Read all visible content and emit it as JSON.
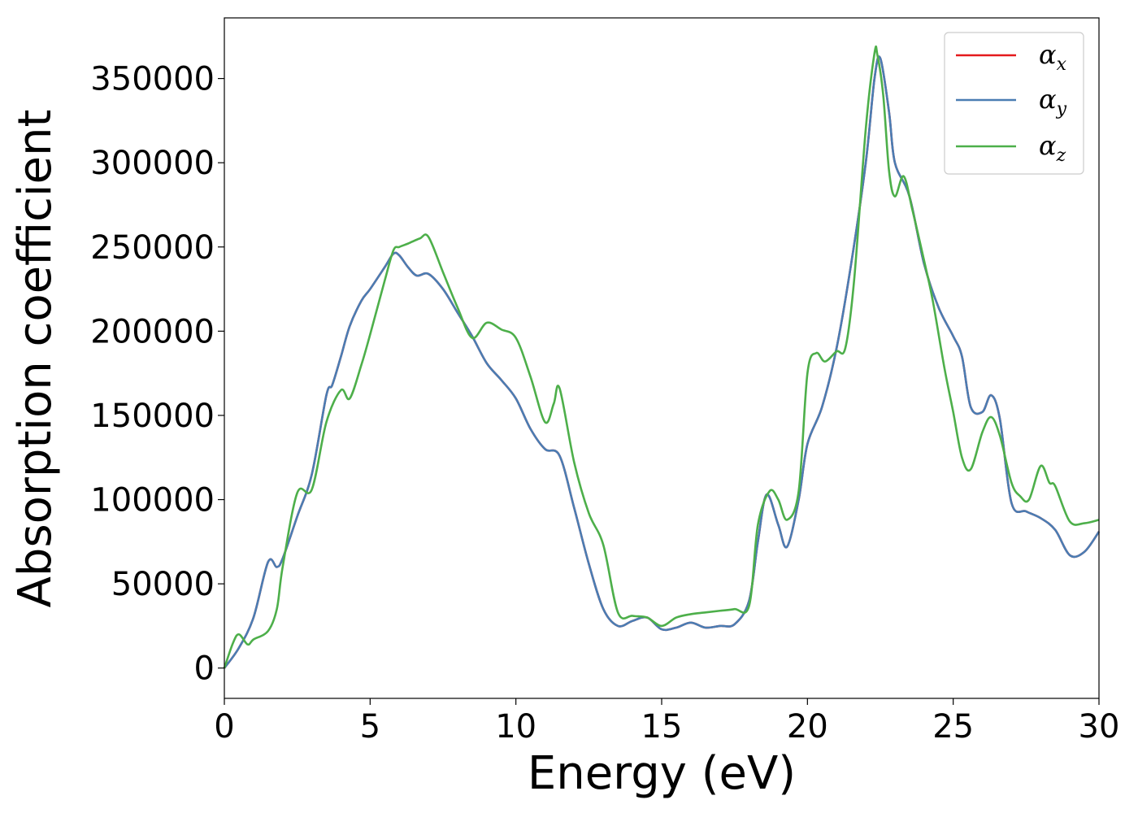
{
  "chart_data": {
    "type": "line",
    "xlabel": "Energy (eV)",
    "ylabel": "Absorption coefficient",
    "xlim": [
      0,
      30
    ],
    "ylim": [
      -18000,
      386000
    ],
    "xticks": [
      0,
      5,
      10,
      15,
      20,
      25,
      30
    ],
    "xtick_labels": [
      "0",
      "5",
      "10",
      "15",
      "20",
      "25",
      "30"
    ],
    "yticks": [
      0,
      50000,
      100000,
      150000,
      200000,
      250000,
      300000,
      350000
    ],
    "ytick_labels": [
      "0",
      "50000",
      "100000",
      "150000",
      "200000",
      "250000",
      "300000",
      "350000"
    ],
    "grid": false,
    "legend": {
      "position": "top-right",
      "entries": [
        {
          "symbol": "α",
          "sub": "x",
          "color": "#e41a1c"
        },
        {
          "symbol": "α",
          "sub": "y",
          "color": "#4a7db3"
        },
        {
          "symbol": "α",
          "sub": "z",
          "color": "#4daf4a"
        }
      ]
    },
    "series": [
      {
        "color": "#e41a1c",
        "x": [
          0,
          0.5,
          1.0,
          1.5,
          1.8,
          2.0,
          2.5,
          3.0,
          3.5,
          3.7,
          4.0,
          4.3,
          4.7,
          5.0,
          5.5,
          5.8,
          6.0,
          6.3,
          6.6,
          7.0,
          7.5,
          8.0,
          8.5,
          9.0,
          9.5,
          10.0,
          10.5,
          11.0,
          11.5,
          12.0,
          12.5,
          13.0,
          13.5,
          14.0,
          14.5,
          15.0,
          15.5,
          16.0,
          16.5,
          17.0,
          17.5,
          18.0,
          18.3,
          18.6,
          19.0,
          19.3,
          19.7,
          20.0,
          20.5,
          21.0,
          21.5,
          22.0,
          22.3,
          22.5,
          22.8,
          23.0,
          23.5,
          24.0,
          24.5,
          25.0,
          25.3,
          25.6,
          26.0,
          26.3,
          26.6,
          27.0,
          27.5,
          28.0,
          28.5,
          29.0,
          29.5,
          30.0
        ],
        "y": [
          0,
          12000,
          30000,
          63000,
          60000,
          65000,
          90000,
          115000,
          162000,
          168000,
          185000,
          203000,
          218000,
          225000,
          238000,
          246000,
          245000,
          238000,
          233000,
          234000,
          225000,
          211000,
          197000,
          181000,
          171000,
          160000,
          142000,
          130000,
          126000,
          95000,
          62000,
          35000,
          25000,
          28000,
          30000,
          23000,
          24000,
          27000,
          24000,
          25000,
          26000,
          40000,
          75000,
          103000,
          85000,
          72000,
          100000,
          133000,
          155000,
          190000,
          240000,
          300000,
          350000,
          362000,
          330000,
          300000,
          280000,
          240000,
          214000,
          197000,
          185000,
          155000,
          152000,
          162000,
          148000,
          98000,
          93000,
          89000,
          82000,
          67000,
          69000,
          81000
        ]
      },
      {
        "color": "#4a7db3",
        "x": [
          0,
          0.5,
          1.0,
          1.5,
          1.8,
          2.0,
          2.5,
          3.0,
          3.5,
          3.7,
          4.0,
          4.3,
          4.7,
          5.0,
          5.5,
          5.8,
          6.0,
          6.3,
          6.6,
          7.0,
          7.5,
          8.0,
          8.5,
          9.0,
          9.5,
          10.0,
          10.5,
          11.0,
          11.5,
          12.0,
          12.5,
          13.0,
          13.5,
          14.0,
          14.5,
          15.0,
          15.5,
          16.0,
          16.5,
          17.0,
          17.5,
          18.0,
          18.3,
          18.6,
          19.0,
          19.3,
          19.7,
          20.0,
          20.5,
          21.0,
          21.5,
          22.0,
          22.3,
          22.5,
          22.8,
          23.0,
          23.5,
          24.0,
          24.5,
          25.0,
          25.3,
          25.6,
          26.0,
          26.3,
          26.6,
          27.0,
          27.5,
          28.0,
          28.5,
          29.0,
          29.5,
          30.0
        ],
        "y": [
          0,
          12000,
          30000,
          63000,
          60000,
          65000,
          90000,
          115000,
          162000,
          168000,
          185000,
          203000,
          218000,
          225000,
          238000,
          246000,
          245000,
          238000,
          233000,
          234000,
          225000,
          211000,
          197000,
          181000,
          171000,
          160000,
          142000,
          130000,
          126000,
          95000,
          62000,
          35000,
          25000,
          28000,
          30000,
          23000,
          24000,
          27000,
          24000,
          25000,
          26000,
          40000,
          75000,
          103000,
          85000,
          72000,
          100000,
          133000,
          155000,
          190000,
          240000,
          300000,
          350000,
          362000,
          330000,
          300000,
          280000,
          240000,
          214000,
          197000,
          185000,
          155000,
          152000,
          162000,
          148000,
          98000,
          93000,
          89000,
          82000,
          67000,
          69000,
          81000
        ]
      },
      {
        "color": "#4daf4a",
        "x": [
          0,
          0.3,
          0.5,
          0.8,
          1.0,
          1.5,
          1.8,
          2.0,
          2.5,
          3.0,
          3.5,
          4.0,
          4.3,
          4.7,
          5.0,
          5.5,
          5.8,
          6.0,
          6.3,
          6.7,
          7.0,
          7.5,
          8.0,
          8.5,
          9.0,
          9.5,
          10.0,
          10.5,
          11.0,
          11.3,
          11.5,
          12.0,
          12.5,
          13.0,
          13.5,
          14.0,
          14.5,
          15.0,
          15.5,
          16.0,
          16.5,
          17.0,
          17.5,
          18.0,
          18.3,
          18.7,
          19.0,
          19.3,
          19.7,
          20.0,
          20.3,
          20.6,
          21.0,
          21.3,
          21.6,
          22.0,
          22.3,
          22.4,
          22.6,
          22.8,
          23.0,
          23.3,
          23.6,
          24.0,
          24.3,
          24.7,
          25.0,
          25.3,
          25.6,
          26.0,
          26.3,
          26.6,
          27.0,
          27.3,
          27.6,
          28.0,
          28.3,
          28.5,
          29.0,
          29.5,
          30.0
        ],
        "y": [
          0,
          15000,
          20000,
          14000,
          17000,
          22000,
          35000,
          60000,
          104000,
          106000,
          146000,
          165000,
          160000,
          180000,
          198000,
          230000,
          248000,
          250000,
          252000,
          255000,
          256000,
          235000,
          214000,
          196000,
          205000,
          201000,
          196000,
          173000,
          146000,
          157000,
          166000,
          122000,
          92000,
          73000,
          33000,
          31000,
          30000,
          25000,
          30000,
          32000,
          33000,
          34000,
          35000,
          37000,
          85000,
          105000,
          100000,
          88000,
          105000,
          175000,
          187000,
          182000,
          188000,
          190000,
          230000,
          320000,
          365000,
          364000,
          340000,
          295000,
          280000,
          292000,
          272000,
          242000,
          218000,
          178000,
          152000,
          125000,
          118000,
          140000,
          149000,
          138000,
          110000,
          102000,
          100000,
          120000,
          110000,
          108000,
          87000,
          86000,
          88000
        ]
      }
    ]
  }
}
